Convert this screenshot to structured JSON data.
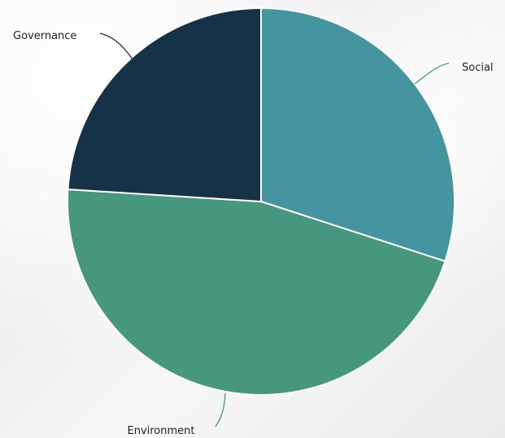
{
  "chart_data": {
    "type": "pie",
    "title": "",
    "categories": [
      "Social",
      "Environment",
      "Governance"
    ],
    "values": [
      30,
      46,
      24
    ],
    "colors": [
      "#4595a0",
      "#47977f",
      "#153246"
    ],
    "legend": "none"
  }
}
